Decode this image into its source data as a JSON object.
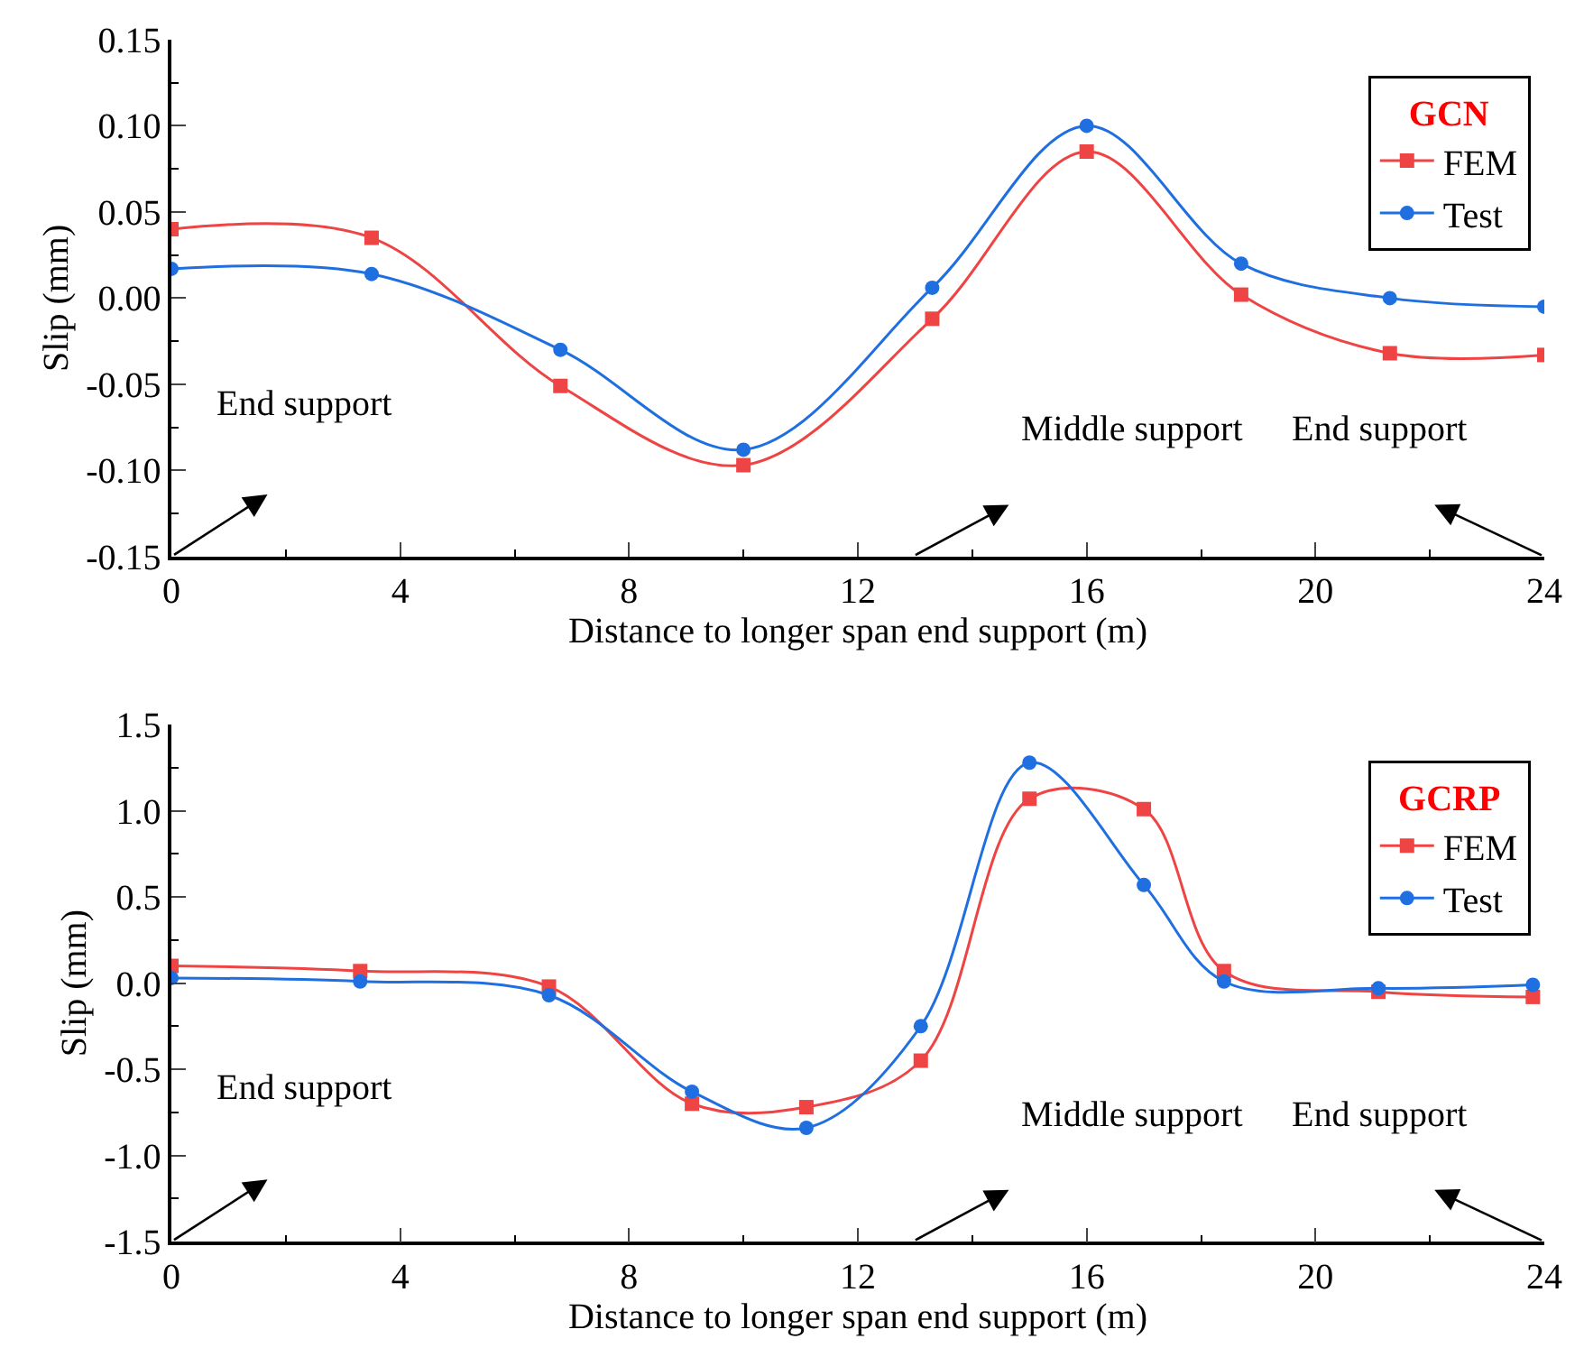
{
  "chart_data": [
    {
      "type": "line",
      "xlabel": "Distance to longer span end support (m)",
      "ylabel": "Slip (mm)",
      "legend_title": "GCN",
      "legend": "top right",
      "line_style": "solid",
      "xlim": [
        0,
        24
      ],
      "xticks": [
        0,
        4,
        8,
        12,
        16,
        20,
        24
      ],
      "ylim": [
        -0.15,
        0.15
      ],
      "yticks": [
        {
          "value": -0.15,
          "label": "-0.15"
        },
        {
          "value": -0.1,
          "label": "-0.10"
        },
        {
          "value": -0.05,
          "label": "-0.05"
        },
        {
          "value": 0,
          "label": "0.00"
        },
        {
          "value": 0.05,
          "label": "0.05"
        },
        {
          "value": 0.1,
          "label": "0.10"
        },
        {
          "value": 0.15,
          "label": "0.15"
        }
      ],
      "series": [
        {
          "name": "FEM",
          "color": "#ee4444",
          "marker": "square",
          "x": [
            0,
            3.5,
            6.8,
            10,
            13.3,
            16,
            18.7,
            21.3,
            24
          ],
          "values": [
            0.04,
            0.035,
            -0.051,
            -0.097,
            -0.012,
            0.085,
            0.002,
            -0.032,
            -0.033
          ]
        },
        {
          "name": "Test",
          "color": "#1f6fe0",
          "marker": "circle",
          "x": [
            0,
            3.5,
            6.8,
            10,
            13.3,
            16,
            18.7,
            21.3,
            24
          ],
          "values": [
            0.017,
            0.014,
            -0.03,
            -0.088,
            0.006,
            0.1,
            0.02,
            0.0,
            -0.005
          ]
        }
      ],
      "annotations": [
        "End support",
        "Middle support",
        "End support"
      ]
    },
    {
      "type": "line",
      "xlabel": "Distance to longer span end support (m)",
      "ylabel": "Slip (mm)",
      "legend_title": "GCRP",
      "legend": "top right",
      "line_style": "solid",
      "xlim": [
        0,
        24
      ],
      "xticks": [
        0,
        4,
        8,
        12,
        16,
        20,
        24
      ],
      "ylim": [
        -1.5,
        1.5
      ],
      "yticks": [
        {
          "value": -1.5,
          "label": "-1.5"
        },
        {
          "value": -1.0,
          "label": "-1.0"
        },
        {
          "value": -0.5,
          "label": "-0.5"
        },
        {
          "value": 0,
          "label": "0.0"
        },
        {
          "value": 0.5,
          "label": "0.5"
        },
        {
          "value": 1.0,
          "label": "1.0"
        },
        {
          "value": 1.5,
          "label": "1.5"
        }
      ],
      "series": [
        {
          "name": "FEM",
          "color": "#ee4444",
          "marker": "square",
          "x": [
            0,
            3.3,
            6.6,
            9.1,
            11.1,
            13.1,
            15,
            17,
            18.4,
            21.1,
            23.8
          ],
          "values": [
            0.1,
            0.07,
            -0.02,
            -0.7,
            -0.72,
            -0.45,
            1.07,
            1.01,
            0.07,
            -0.05,
            -0.08
          ]
        },
        {
          "name": "Test",
          "color": "#1f6fe0",
          "marker": "circle",
          "x": [
            0,
            3.3,
            6.6,
            9.1,
            11.1,
            13.1,
            15,
            17,
            18.4,
            21.1,
            23.8
          ],
          "values": [
            0.03,
            0.01,
            -0.07,
            -0.63,
            -0.84,
            -0.25,
            1.28,
            0.57,
            0.01,
            -0.03,
            -0.01
          ]
        }
      ],
      "annotations": [
        "End support",
        "Middle support",
        "End support"
      ]
    }
  ]
}
